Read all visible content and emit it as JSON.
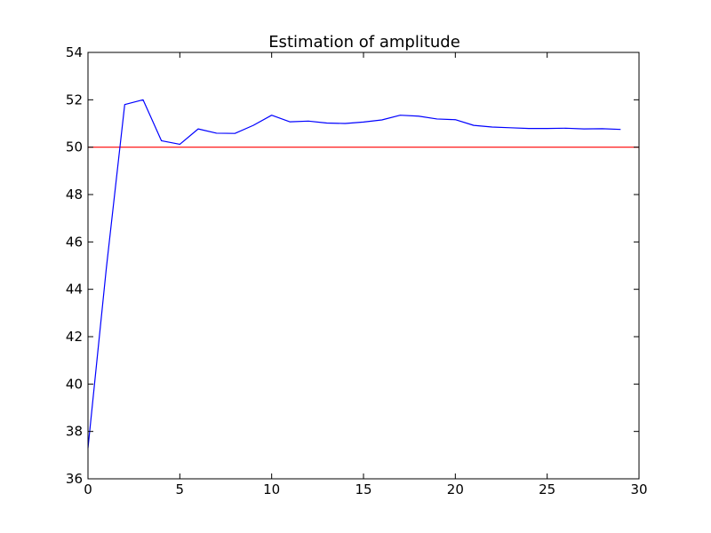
{
  "chart_data": {
    "type": "line",
    "title": "Estimation of amplitude",
    "xlabel": "",
    "ylabel": "",
    "xlim": [
      0,
      30
    ],
    "ylim": [
      36,
      54
    ],
    "xticks": [
      0,
      5,
      10,
      15,
      20,
      25,
      30
    ],
    "yticks": [
      36,
      38,
      40,
      42,
      44,
      46,
      48,
      50,
      52,
      54
    ],
    "grid": false,
    "series": [
      {
        "color": "#0000ff",
        "x": [
          0,
          1,
          2,
          3,
          4,
          5,
          6,
          7,
          8,
          9,
          10,
          11,
          12,
          13,
          14,
          15,
          16,
          17,
          18,
          19,
          20,
          21,
          22,
          23,
          24,
          25,
          26,
          27,
          28,
          29
        ],
        "y": [
          37.3,
          44.9,
          51.8,
          52.0,
          50.27,
          50.12,
          50.77,
          50.59,
          50.58,
          50.92,
          51.35,
          51.07,
          51.1,
          51.02,
          51.0,
          51.06,
          51.15,
          51.35,
          51.31,
          51.19,
          51.16,
          50.92,
          50.85,
          50.82,
          50.79,
          50.79,
          50.8,
          50.77,
          50.78,
          50.75
        ]
      }
    ],
    "reference_lines": [
      {
        "axis": "y",
        "value": 50,
        "color": "#ff0000"
      }
    ]
  }
}
